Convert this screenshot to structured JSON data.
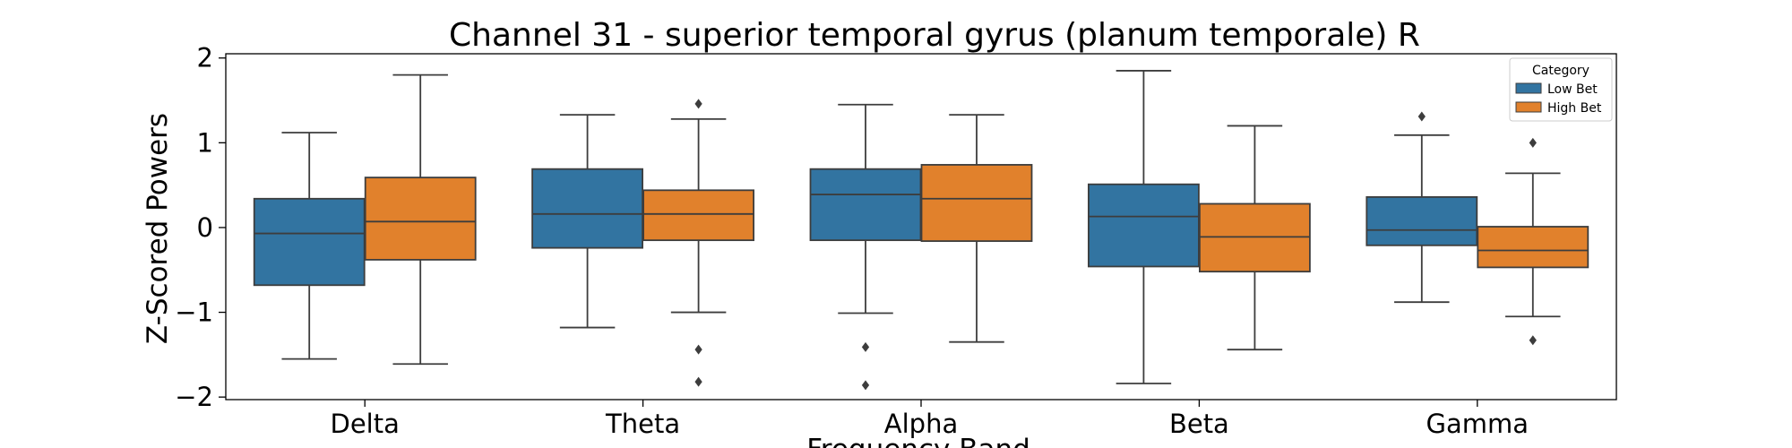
{
  "chart_data": {
    "type": "box",
    "title": "Channel 31 - superior temporal gyrus (planum temporale) R",
    "xlabel": "Frequency Band",
    "ylabel": "Z-Scored Powers",
    "ylim": [
      -2.03,
      2.05
    ],
    "yticks": [
      2,
      1,
      0,
      -1,
      -2
    ],
    "ytick_labels": [
      "2",
      "1",
      "0",
      "−1",
      "−2"
    ],
    "categories": [
      "Delta",
      "Theta",
      "Alpha",
      "Beta",
      "Gamma"
    ],
    "grid": false,
    "legend": {
      "title": "Category",
      "position": "top-right"
    },
    "series": [
      {
        "name": "Low Bet",
        "color": "#3274a1",
        "boxes": [
          {
            "whisker_low": -1.55,
            "q1": -0.68,
            "median": -0.07,
            "q3": 0.34,
            "whisker_high": 1.12,
            "outliers": []
          },
          {
            "whisker_low": -1.18,
            "q1": -0.24,
            "median": 0.16,
            "q3": 0.69,
            "whisker_high": 1.33,
            "outliers": []
          },
          {
            "whisker_low": -1.01,
            "q1": -0.15,
            "median": 0.39,
            "q3": 0.69,
            "whisker_high": 1.45,
            "outliers": [
              -1.41,
              -1.86
            ]
          },
          {
            "whisker_low": -1.84,
            "q1": -0.46,
            "median": 0.13,
            "q3": 0.51,
            "whisker_high": 1.85,
            "outliers": []
          },
          {
            "whisker_low": -0.88,
            "q1": -0.21,
            "median": -0.03,
            "q3": 0.36,
            "whisker_high": 1.09,
            "outliers": [
              1.31
            ]
          }
        ]
      },
      {
        "name": "High Bet",
        "color": "#e1812c",
        "boxes": [
          {
            "whisker_low": -1.61,
            "q1": -0.38,
            "median": 0.07,
            "q3": 0.59,
            "whisker_high": 1.8,
            "outliers": []
          },
          {
            "whisker_low": -1.0,
            "q1": -0.15,
            "median": 0.16,
            "q3": 0.44,
            "whisker_high": 1.28,
            "outliers": [
              1.46,
              -1.44,
              -1.82
            ]
          },
          {
            "whisker_low": -1.35,
            "q1": -0.16,
            "median": 0.34,
            "q3": 0.74,
            "whisker_high": 1.33,
            "outliers": []
          },
          {
            "whisker_low": -1.44,
            "q1": -0.52,
            "median": -0.11,
            "q3": 0.28,
            "whisker_high": 1.2,
            "outliers": []
          },
          {
            "whisker_low": -1.05,
            "q1": -0.47,
            "median": -0.27,
            "q3": 0.01,
            "whisker_high": 0.64,
            "outliers": [
              1.0,
              -1.33
            ]
          }
        ]
      }
    ]
  }
}
